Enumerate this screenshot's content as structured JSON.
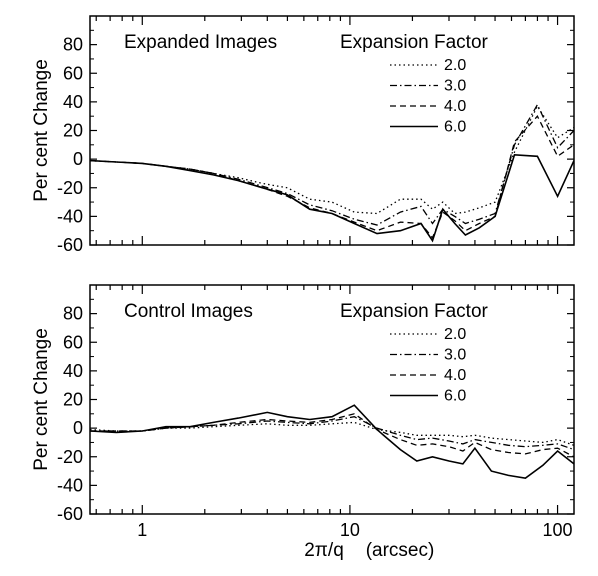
{
  "figure": {
    "xlabel_symbol": "2π/q",
    "xlabel_unit": "(arcsec)"
  },
  "chart_data": [
    {
      "type": "line",
      "title": "Expanded Images",
      "legend_title": "Expansion Factor",
      "legend_position": "top-right",
      "ylabel": "Per cent Change",
      "xlabel": "2π/q (arcsec)",
      "xscale": "log",
      "xlim": [
        0.56,
        120
      ],
      "ylim": [
        -60,
        100
      ],
      "grid": false,
      "x_ticks": [
        1,
        10,
        100
      ],
      "y_ticks": [
        -60,
        -40,
        -20,
        0,
        20,
        40,
        60,
        80
      ],
      "x": [
        0.56,
        0.75,
        1.0,
        1.3,
        1.7,
        2.2,
        2.9,
        3.8,
        5.0,
        6.4,
        8.2,
        10.5,
        13.5,
        17.5,
        22,
        25,
        28,
        32,
        36,
        42,
        50,
        62,
        80,
        100,
        120
      ],
      "series": [
        {
          "name": "2.0",
          "style": "dotted",
          "values": [
            -1,
            -2,
            -3,
            -5,
            -7,
            -10,
            -13,
            -17,
            -20,
            -28,
            -30,
            -37,
            -38,
            -28,
            -28,
            -35,
            -30,
            -38,
            -37,
            -34,
            -30,
            5,
            37,
            15,
            22
          ]
        },
        {
          "name": "3.0",
          "style": "dashdot",
          "values": [
            -1,
            -2,
            -3,
            -5,
            -7,
            -10,
            -14,
            -19,
            -24,
            -32,
            -36,
            -42,
            -46,
            -37,
            -33,
            -45,
            -35,
            -40,
            -45,
            -42,
            -38,
            10,
            38,
            8,
            20
          ]
        },
        {
          "name": "4.0",
          "style": "dashed",
          "values": [
            -1,
            -2,
            -3,
            -5,
            -7,
            -10,
            -15,
            -20,
            -26,
            -34,
            -38,
            -44,
            -50,
            -44,
            -45,
            -55,
            -37,
            -43,
            -50,
            -45,
            -40,
            12,
            30,
            2,
            10
          ]
        },
        {
          "name": "6.0",
          "style": "solid",
          "values": [
            -1,
            -2,
            -3,
            -5,
            -8,
            -11,
            -15,
            -20,
            -25,
            -35,
            -38,
            -45,
            -52,
            -50,
            -45,
            -57,
            -35,
            -45,
            -53,
            -48,
            -40,
            3,
            2,
            -26,
            -1
          ]
        }
      ]
    },
    {
      "type": "line",
      "title": "Control Images",
      "legend_title": "Expansion Factor",
      "legend_position": "top-right",
      "ylabel": "Per cent Change",
      "xlabel": "2π/q (arcsec)",
      "xscale": "log",
      "xlim": [
        0.56,
        120
      ],
      "ylim": [
        -60,
        100
      ],
      "grid": false,
      "x_ticks": [
        1,
        10,
        100
      ],
      "y_ticks": [
        -60,
        -40,
        -20,
        0,
        20,
        40,
        60,
        80
      ],
      "x": [
        0.56,
        0.75,
        1.0,
        1.3,
        1.7,
        2.2,
        2.9,
        4.0,
        5.0,
        6.4,
        8.2,
        10.5,
        13.5,
        17.5,
        21,
        25,
        30,
        35,
        40,
        48,
        58,
        70,
        85,
        100,
        120
      ],
      "series": [
        {
          "name": "2.0",
          "style": "dotted",
          "values": [
            -1,
            -2,
            -2,
            0,
            0,
            1,
            2,
            3,
            2,
            2,
            3,
            4,
            -1,
            -3,
            -5,
            -5,
            -5,
            -6,
            -5,
            -7,
            -8,
            -9,
            -10,
            -8,
            -12
          ]
        },
        {
          "name": "3.0",
          "style": "dashdot",
          "values": [
            -2,
            -2,
            -2,
            0,
            1,
            2,
            3,
            5,
            4,
            3,
            5,
            8,
            0,
            -5,
            -8,
            -7,
            -9,
            -11,
            -8,
            -10,
            -12,
            -13,
            -12,
            -11,
            -15
          ]
        },
        {
          "name": "4.0",
          "style": "dashed",
          "values": [
            -2,
            -2,
            -2,
            0,
            1,
            2,
            4,
            6,
            5,
            4,
            6,
            10,
            -1,
            -8,
            -12,
            -11,
            -13,
            -16,
            -10,
            -15,
            -17,
            -18,
            -15,
            -14,
            -20
          ]
        },
        {
          "name": "6.0",
          "style": "solid",
          "values": [
            -2,
            -3,
            -2,
            1,
            1,
            4,
            7,
            11,
            8,
            6,
            8,
            16,
            -1,
            -15,
            -23,
            -20,
            -23,
            -25,
            -14,
            -30,
            -33,
            -35,
            -26,
            -16,
            -25
          ]
        }
      ]
    }
  ]
}
